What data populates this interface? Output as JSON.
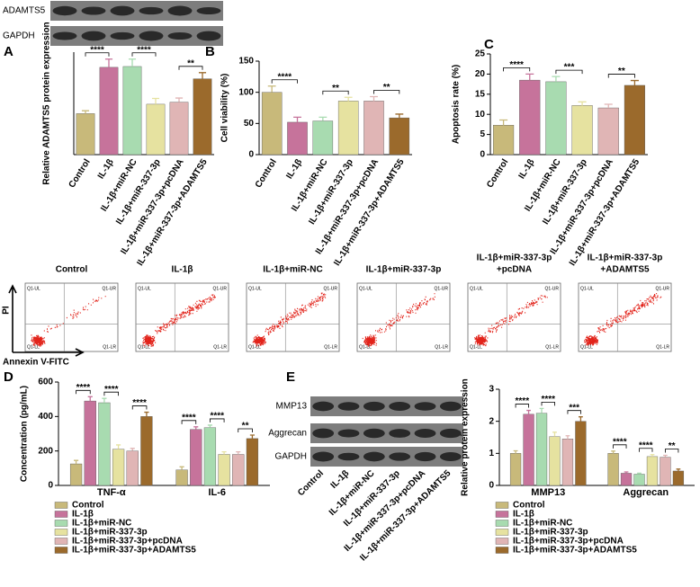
{
  "chart_data": [
    {
      "type": "bar",
      "panel": "A",
      "ylabel": "Relative ADAMTS5 protein expression",
      "categories": [
        "Control",
        "IL-1β",
        "IL-1β+miR-NC",
        "IL-1β+miR-337-3p",
        "IL-1β+miR-337-3p+pcDNA",
        "IL-1β+miR-337-3p+ADAMTS5"
      ],
      "values": [
        1.0,
        2.13,
        2.15,
        1.23,
        1.28,
        1.85
      ],
      "errors": [
        0.07,
        0.2,
        0.18,
        0.14,
        0.1,
        0.15
      ],
      "colors": [
        "#c8b97a",
        "#c6739b",
        "#a8dbb0",
        "#e6e2a0",
        "#e0b5b5",
        "#9b6a2c"
      ],
      "ylim": [
        0,
        2.5
      ],
      "significance": [
        {
          "pair": [
            0,
            1
          ],
          "label": "****"
        },
        {
          "pair": [
            2,
            3
          ],
          "label": "****"
        },
        {
          "pair": [
            4,
            5
          ],
          "label": "**"
        }
      ]
    },
    {
      "type": "bar",
      "panel": "B",
      "ylabel": "Cell viability (%)",
      "categories": [
        "Control",
        "IL-1β",
        "IL-1β+miR-NC",
        "IL-1β+miR-337-3p",
        "IL-1β+miR-337-3p+pcDNA",
        "IL-1β+miR-337-3p+ADAMTS5"
      ],
      "values": [
        100,
        52,
        54,
        86,
        86,
        59
      ],
      "errors": [
        10,
        8,
        6,
        6,
        7,
        6
      ],
      "colors": [
        "#c8b97a",
        "#c6739b",
        "#a8dbb0",
        "#e6e2a0",
        "#e0b5b5",
        "#9b6a2c"
      ],
      "ylim": [
        0,
        150
      ],
      "yticks": [
        0,
        50,
        100,
        150
      ],
      "significance": [
        {
          "pair": [
            0,
            1
          ],
          "label": "****"
        },
        {
          "pair": [
            2,
            3
          ],
          "label": "**"
        },
        {
          "pair": [
            4,
            5
          ],
          "label": "**"
        }
      ]
    },
    {
      "type": "bar",
      "panel": "C",
      "ylabel": "Apoptosis rate (%)",
      "categories": [
        "Control",
        "IL-1β",
        "IL-1β+miR-NC",
        "IL-1β+miR-337-3p",
        "IL-1β+miR-337-3p+pcDNA",
        "IL-1β+miR-337-3p+ADAMTS5"
      ],
      "values": [
        7.3,
        18.5,
        18.1,
        12.2,
        11.6,
        17.2
      ],
      "errors": [
        1.3,
        1.5,
        1.3,
        0.9,
        0.9,
        1.2
      ],
      "colors": [
        "#c8b97a",
        "#c6739b",
        "#a8dbb0",
        "#e6e2a0",
        "#e0b5b5",
        "#9b6a2c"
      ],
      "ylim": [
        0,
        25
      ],
      "yticks": [
        0,
        5,
        10,
        15,
        20,
        25
      ],
      "significance": [
        {
          "pair": [
            0,
            1
          ],
          "label": "****"
        },
        {
          "pair": [
            2,
            3
          ],
          "label": "***"
        },
        {
          "pair": [
            4,
            5
          ],
          "label": "**"
        }
      ]
    },
    {
      "type": "grouped-bar",
      "panel": "D",
      "ylabel": "Concentration (pg/mL)",
      "categories": [
        "TNF-α",
        "IL-6"
      ],
      "series": [
        {
          "name": "Control",
          "color": "#c8b97a",
          "values": [
            125,
            90
          ],
          "errors": [
            20,
            18
          ]
        },
        {
          "name": "IL-1β",
          "color": "#c6739b",
          "values": [
            490,
            325
          ],
          "errors": [
            25,
            15
          ]
        },
        {
          "name": "IL-1β+miR-NC",
          "color": "#a8dbb0",
          "values": [
            480,
            335
          ],
          "errors": [
            25,
            15
          ]
        },
        {
          "name": "IL-1β+miR-337-3p",
          "color": "#e6e2a0",
          "values": [
            210,
            180
          ],
          "errors": [
            25,
            15
          ]
        },
        {
          "name": "IL-1β+miR-337-3p+pcDNA",
          "color": "#e0b5b5",
          "values": [
            200,
            180
          ],
          "errors": [
            15,
            15
          ]
        },
        {
          "name": "IL-1β+miR-337-3p+ADAMTS5",
          "color": "#9b6a2c",
          "values": [
            400,
            272
          ],
          "errors": [
            25,
            20
          ]
        }
      ],
      "ylim": [
        0,
        600
      ],
      "yticks": [
        0,
        200,
        400,
        600
      ],
      "significance": [
        {
          "category": 0,
          "pair": [
            0,
            1
          ],
          "label": "****"
        },
        {
          "category": 0,
          "pair": [
            2,
            3
          ],
          "label": "****"
        },
        {
          "category": 0,
          "pair": [
            4,
            5
          ],
          "label": "****"
        },
        {
          "category": 1,
          "pair": [
            0,
            1
          ],
          "label": "****"
        },
        {
          "category": 1,
          "pair": [
            2,
            3
          ],
          "label": "****"
        },
        {
          "category": 1,
          "pair": [
            4,
            5
          ],
          "label": "**"
        }
      ]
    },
    {
      "type": "grouped-bar",
      "panel": "E",
      "ylabel": "Relative protein expression",
      "categories": [
        "MMP13",
        "Aggrecan"
      ],
      "series": [
        {
          "name": "Control",
          "color": "#c8b97a",
          "values": [
            1.0,
            1.0
          ],
          "errors": [
            0.08,
            0.07
          ]
        },
        {
          "name": "IL-1β",
          "color": "#c6739b",
          "values": [
            2.22,
            0.38
          ],
          "errors": [
            0.12,
            0.04
          ]
        },
        {
          "name": "IL-1β+miR-NC",
          "color": "#a8dbb0",
          "values": [
            2.25,
            0.35
          ],
          "errors": [
            0.15,
            0.03
          ]
        },
        {
          "name": "IL-1β+miR-337-3p",
          "color": "#e6e2a0",
          "values": [
            1.52,
            0.9
          ],
          "errors": [
            0.14,
            0.06
          ]
        },
        {
          "name": "IL-1β+miR-337-3p+pcDNA",
          "color": "#e0b5b5",
          "values": [
            1.45,
            0.88
          ],
          "errors": [
            0.1,
            0.06
          ]
        },
        {
          "name": "IL-1β+miR-337-3p+ADAMTS5",
          "color": "#9b6a2c",
          "values": [
            2.0,
            0.45
          ],
          "errors": [
            0.14,
            0.06
          ]
        }
      ],
      "ylim": [
        0,
        3
      ],
      "yticks": [
        0,
        1,
        2,
        3
      ],
      "significance": [
        {
          "category": 0,
          "pair": [
            0,
            1
          ],
          "label": "****"
        },
        {
          "category": 0,
          "pair": [
            2,
            3
          ],
          "label": "****"
        },
        {
          "category": 0,
          "pair": [
            4,
            5
          ],
          "label": "***"
        },
        {
          "category": 1,
          "pair": [
            0,
            1
          ],
          "label": "****"
        },
        {
          "category": 1,
          "pair": [
            2,
            3
          ],
          "label": "****"
        },
        {
          "category": 1,
          "pair": [
            4,
            5
          ],
          "label": "**"
        }
      ]
    }
  ],
  "blots": [
    {
      "labels": [
        "ADAMTS5",
        "GAPDH"
      ]
    },
    {
      "labels": [
        "MMP13",
        "Aggrecan",
        "GAPDH"
      ],
      "lanes": [
        "Control",
        "IL-1β",
        "IL-1β+miR-NC",
        "IL-1β+miR-337-3p",
        "IL-1β+miR-337-3p+pcDNA",
        "IL-1β+miR-337-3p+ADAMTS5"
      ]
    }
  ],
  "flow": {
    "titles": [
      [
        "Control"
      ],
      [
        "IL-1β"
      ],
      [
        "IL-1β+miR-NC"
      ],
      [
        "IL-1β+miR-337-3p"
      ],
      [
        "IL-1β+miR-337-3p",
        "+pcDNA"
      ],
      [
        "IL-1β+miR-337-3p",
        "+ADAMTS5"
      ]
    ],
    "quadrants": [
      "Q1-UL",
      "Q1-UR",
      "Q1-LL",
      "Q1-LR"
    ],
    "xlabel": "Annexin V-FITC",
    "ylabel": "PI"
  }
}
